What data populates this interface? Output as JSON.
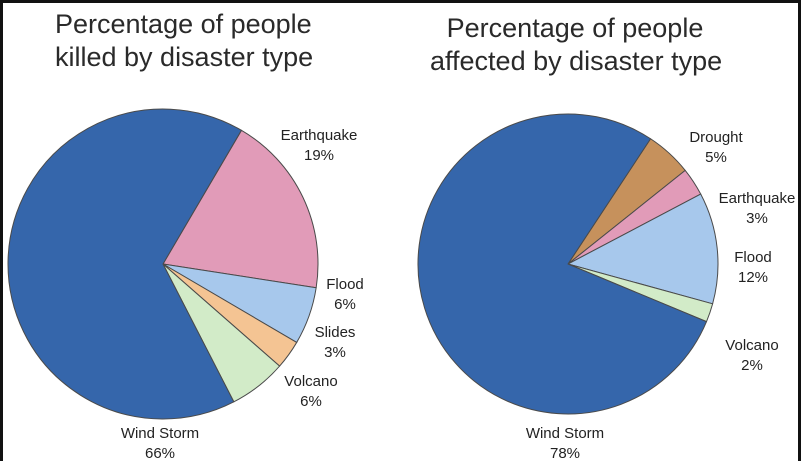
{
  "chart_data": [
    {
      "type": "pie",
      "title_lines": [
        "Percentage of people",
        "killed by disaster type"
      ],
      "slices": [
        {
          "label": "Wind Storm",
          "value": 66,
          "value_text": "66%",
          "color": "#3566ab"
        },
        {
          "label": "Earthquake",
          "value": 19,
          "value_text": "19%",
          "color": "#e19bb8"
        },
        {
          "label": "Flood",
          "value": 6,
          "value_text": "6%",
          "color": "#a7c8ec"
        },
        {
          "label": "Slides",
          "value": 3,
          "value_text": "3%",
          "color": "#f4c493"
        },
        {
          "label": "Volcano",
          "value": 6,
          "value_text": "6%",
          "color": "#d2ebc8"
        }
      ]
    },
    {
      "type": "pie",
      "title_lines": [
        "Percentage of people",
        "affected by disaster type"
      ],
      "slices": [
        {
          "label": "Wind Storm",
          "value": 78,
          "value_text": "78%",
          "color": "#3566ab"
        },
        {
          "label": "Drought",
          "value": 5,
          "value_text": "5%",
          "color": "#c6915c"
        },
        {
          "label": "Earthquake",
          "value": 3,
          "value_text": "3%",
          "color": "#e19bb8"
        },
        {
          "label": "Flood",
          "value": 12,
          "value_text": "12%",
          "color": "#a7c8ec"
        },
        {
          "label": "Volcano",
          "value": 2,
          "value_text": "2%",
          "color": "#d2ebc8"
        }
      ]
    }
  ]
}
